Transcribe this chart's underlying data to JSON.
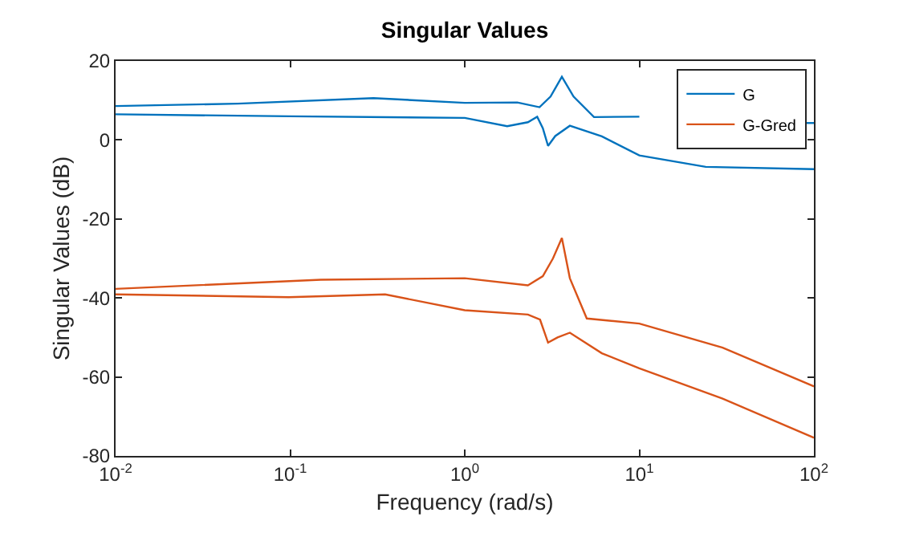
{
  "chart_data": {
    "type": "line",
    "title": "Singular Values",
    "xlabel": "Frequency (rad/s)",
    "ylabel": "Singular Values (dB)",
    "log": "x",
    "grid": false,
    "legend": "top right",
    "marker": "none",
    "line_style": "solid",
    "xlim": [
      0.01,
      100
    ],
    "xticks": [
      {
        "value": 0.01,
        "label": "10$^{-2}$"
      },
      {
        "value": 0.1,
        "label": "10$^{-1}$"
      },
      {
        "value": 1,
        "label": "10$^{0}$"
      },
      {
        "value": 10,
        "label": "10$^{1}$"
      },
      {
        "value": 100,
        "label": "10$^{2}$"
      }
    ],
    "ylim": [
      -80,
      20
    ],
    "yticks": [
      -80,
      -60,
      -40,
      -20,
      0,
      20
    ],
    "series": [
      {
        "name": "G",
        "color": "#0072bd",
        "x": [
          0.01,
          0.05,
          0.3,
          1,
          2,
          2.68,
          3.1,
          3.6,
          4.2,
          5.5,
          10,
          30,
          90,
          100
        ],
        "values": [
          8.6,
          9.2,
          10.6,
          9.4,
          9.5,
          8.3,
          11,
          16,
          11,
          5.8,
          5.9,
          null,
          4.3,
          4.3
        ]
      },
      {
        "color": "#0072bd",
        "x": [
          0.01,
          0.1,
          1,
          1.75,
          2.3,
          2.6,
          2.8,
          3.0,
          3.3,
          4.0,
          6.1,
          10,
          24,
          100
        ],
        "values": [
          6.5,
          6,
          5.6,
          3.5,
          4.5,
          5.9,
          3,
          -1.5,
          1,
          3.6,
          0.9,
          -3.9,
          -6.8,
          -7.4
        ]
      },
      {
        "name": "G-Gred",
        "color": "#d95319",
        "x": [
          0.01,
          0.15,
          1,
          2.3,
          2.8,
          3.2,
          3.6,
          4.0,
          5,
          10,
          30,
          100
        ],
        "values": [
          -37.7,
          -35.4,
          -35,
          -36.8,
          -34.5,
          -30,
          -24.8,
          -35,
          -45.2,
          -46.5,
          -52.6,
          -62.4
        ]
      },
      {
        "color": "#d95319",
        "x": [
          0.01,
          0.098,
          0.35,
          1,
          2.3,
          2.7,
          3.0,
          3.4,
          4.0,
          6.1,
          10,
          30,
          100
        ],
        "values": [
          -39.1,
          -39.8,
          -39.1,
          -43.1,
          -44.2,
          -45.5,
          -51.3,
          -50,
          -48.8,
          -54,
          -57.8,
          -65.5,
          -75.4
        ]
      }
    ]
  }
}
